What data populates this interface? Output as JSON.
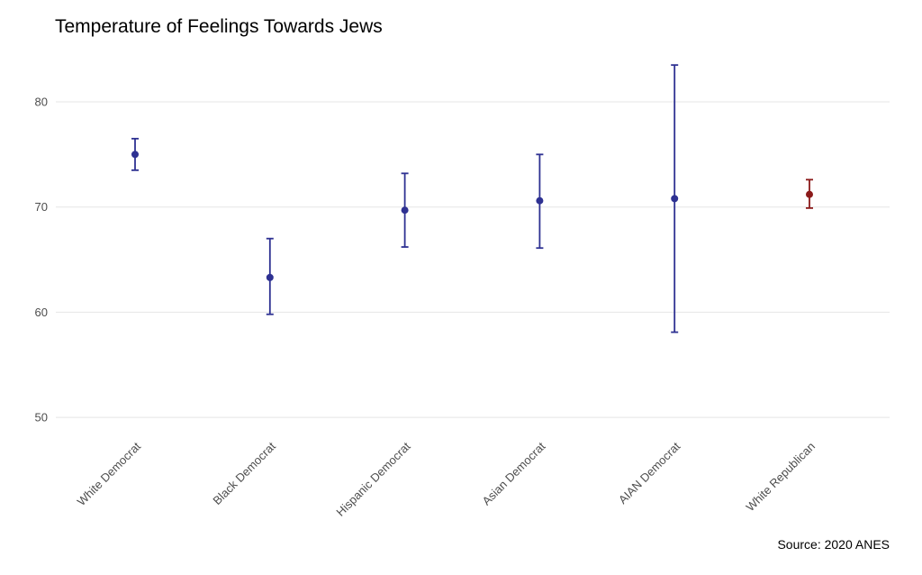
{
  "chart_data": {
    "type": "errorbar",
    "title": "Temperature of Feelings Towards Jews",
    "source": "Source: 2020 ANES",
    "xlabel": "",
    "ylabel": "",
    "ylim": [
      45.7,
      84.8
    ],
    "yticks": [
      50,
      60,
      70,
      80
    ],
    "grid": "horizontal",
    "categories": [
      "White Democrat",
      "Black Democrat",
      "Hispanic Democrat",
      "Asian Democrat",
      "AIAN Democrat",
      "White Republican"
    ],
    "points": [
      {
        "category": "White Democrat",
        "value": 75.0,
        "lower": 73.5,
        "upper": 76.5,
        "color": "#2e3192"
      },
      {
        "category": "Black Democrat",
        "value": 63.3,
        "lower": 59.8,
        "upper": 67.0,
        "color": "#2e3192"
      },
      {
        "category": "Hispanic Democrat",
        "value": 69.7,
        "lower": 66.2,
        "upper": 73.2,
        "color": "#2e3192"
      },
      {
        "category": "Asian Democrat",
        "value": 70.6,
        "lower": 66.1,
        "upper": 75.0,
        "color": "#2e3192"
      },
      {
        "category": "AIAN Democrat",
        "value": 70.8,
        "lower": 58.1,
        "upper": 83.5,
        "color": "#2e3192"
      },
      {
        "category": "White Republican",
        "value": 71.2,
        "lower": 69.9,
        "upper": 72.6,
        "color": "#8b1a1a"
      }
    ]
  }
}
